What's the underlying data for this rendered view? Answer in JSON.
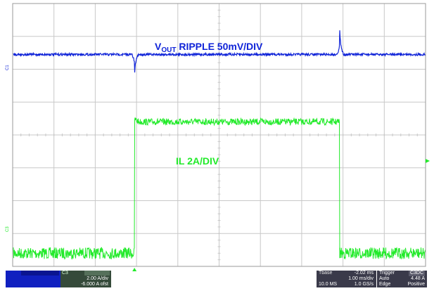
{
  "chart_data": {
    "type": "line",
    "x_divisions": 10,
    "y_divisions": 8,
    "grid": true,
    "series": [
      {
        "name": "C1",
        "color": "#1024d8",
        "label_prefix": "V",
        "label_sub": "OUT",
        "label_rest": " RIPPLE  50mV/DIV",
        "baseline_div": 6.45,
        "noise_div": 0.07,
        "spikes": [
          {
            "t_div": 2.95,
            "dy_div": -0.65
          },
          {
            "t_div": 7.92,
            "dy_div": 0.75
          }
        ]
      },
      {
        "name": "C3",
        "color": "#22ea2a",
        "label": "IL  2A/DIV",
        "low_div": 0.4,
        "high_div": 4.4,
        "noise_low_div": 0.35,
        "noise_high_div": 0.2,
        "rise_div": 2.95,
        "fall_div": 7.92
      }
    ],
    "channel_markers": {
      "c1": "C1",
      "c3": "C3"
    },
    "trigger_marker_div": 2.95
  },
  "panel": {
    "c1": {
      "title": "",
      "line1": "",
      "line2": ""
    },
    "c3": {
      "title": "C3",
      "badge": "",
      "line1": "2.00 A/div",
      "line2": "-6.000 A ofst"
    },
    "tbase": {
      "title": "Tbase",
      "value": "-2.02 ms",
      "div": "1.00 ms/div",
      "rate_l": "10.0 MS",
      "rate_r": "1.0 GS/s"
    },
    "trigger": {
      "title": "Trigger",
      "mode": "Auto",
      "level": "4.48 A",
      "type": "Edge",
      "slope": "Positive",
      "badge": "C3DC"
    }
  },
  "colors": {
    "grid": "#c8c8c8",
    "frame": "#9a9a9a",
    "panel_bg": "#3a3a4a"
  }
}
